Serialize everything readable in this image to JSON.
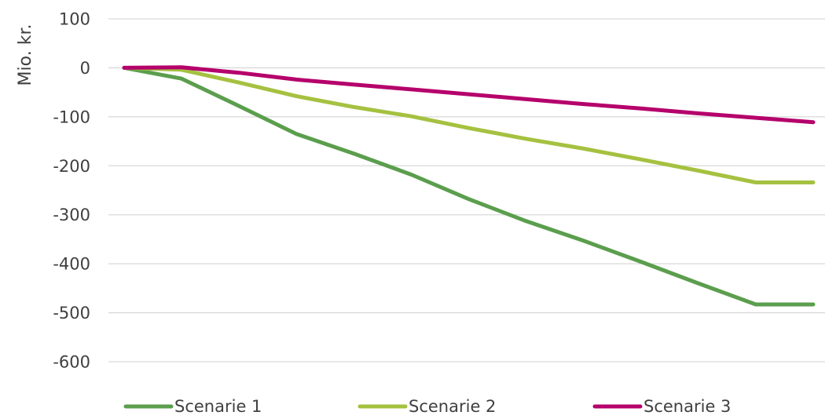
{
  "chart_data": {
    "type": "line",
    "title": "",
    "xlabel": "",
    "ylabel": "Mio. kr.",
    "ylim": [
      -600,
      100
    ],
    "yticks": [
      100,
      0,
      -100,
      -200,
      -300,
      -400,
      -500,
      -600
    ],
    "grid": true,
    "legend_position": "bottom",
    "x": [
      1,
      2,
      3,
      4,
      5,
      6,
      7,
      8,
      9,
      10,
      11,
      12,
      13
    ],
    "series": [
      {
        "name": "Scenarie 1",
        "color": "#5B9E4D",
        "values": [
          0,
          -22,
          -78,
          -135,
          -175,
          -218,
          -268,
          -313,
          -353,
          -396,
          -440,
          -483,
          -483
        ]
      },
      {
        "name": "Scenarie 2",
        "color": "#A5C140",
        "values": [
          0,
          -4,
          -30,
          -58,
          -80,
          -99,
          -123,
          -145,
          -165,
          -187,
          -210,
          -234,
          -234
        ]
      },
      {
        "name": "Scenarie 3",
        "color": "#B5006B",
        "values": [
          0,
          1,
          -10,
          -24,
          -34,
          -44,
          -54,
          -64,
          -74,
          -83,
          -93,
          -102,
          -111
        ]
      }
    ]
  }
}
